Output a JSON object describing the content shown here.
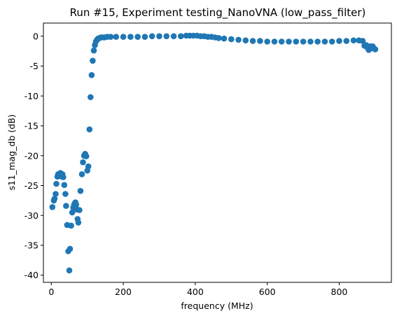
{
  "chart_data": {
    "type": "scatter",
    "title": "Run #15, Experiment testing_NanoVNA (low_pass_filter)",
    "xlabel": "frequency (MHz)",
    "ylabel": "s11_mag_db (dB)",
    "xlim": [
      -22,
      945
    ],
    "ylim": [
      -41.2,
      2.2
    ],
    "xticks": [
      0,
      200,
      400,
      600,
      800
    ],
    "xtick_labels": [
      "0",
      "200",
      "400",
      "600",
      "800"
    ],
    "yticks": [
      0,
      -5,
      -10,
      -15,
      -20,
      -25,
      -30,
      -35,
      -40
    ],
    "ytick_labels": [
      "0",
      "-5",
      "-10",
      "-15",
      "-20",
      "-25",
      "-30",
      "-35",
      "-40"
    ],
    "grid": false,
    "marker_color": "#1f77b4",
    "points": [
      [
        3,
        -28.6
      ],
      [
        7,
        -27.5
      ],
      [
        9,
        -27.2
      ],
      [
        12,
        -26.4
      ],
      [
        14,
        -24.7
      ],
      [
        17,
        -23.5
      ],
      [
        19,
        -23.1
      ],
      [
        21,
        -23.2
      ],
      [
        23,
        -23.4
      ],
      [
        25,
        -22.9
      ],
      [
        27,
        -23.2
      ],
      [
        29,
        -23.5
      ],
      [
        31,
        -23.1
      ],
      [
        33,
        -23.6
      ],
      [
        36,
        -24.9
      ],
      [
        39,
        -26.4
      ],
      [
        41,
        -28.4
      ],
      [
        44,
        -31.6
      ],
      [
        47,
        -36.0
      ],
      [
        50,
        -39.2
      ],
      [
        52,
        -35.6
      ],
      [
        55,
        -31.7
      ],
      [
        58,
        -29.5
      ],
      [
        61,
        -28.7
      ],
      [
        63,
        -28.3
      ],
      [
        65,
        -28.0
      ],
      [
        67,
        -27.8
      ],
      [
        69,
        -28.2
      ],
      [
        71,
        -29.0
      ],
      [
        73,
        -30.6
      ],
      [
        75,
        -31.2
      ],
      [
        78,
        -29.1
      ],
      [
        81,
        -25.9
      ],
      [
        85,
        -23.1
      ],
      [
        88,
        -21.1
      ],
      [
        91,
        -20.0
      ],
      [
        94,
        -19.7
      ],
      [
        97,
        -20.1
      ],
      [
        100,
        -22.5
      ],
      [
        103,
        -21.8
      ],
      [
        106,
        -15.6
      ],
      [
        109,
        -10.2
      ],
      [
        112,
        -6.5
      ],
      [
        115,
        -4.1
      ],
      [
        118,
        -2.4
      ],
      [
        121,
        -1.5
      ],
      [
        124,
        -0.9
      ],
      [
        127,
        -0.6
      ],
      [
        130,
        -0.4
      ],
      [
        134,
        -0.3
      ],
      [
        138,
        -0.2
      ],
      [
        143,
        -0.2
      ],
      [
        148,
        -0.2
      ],
      [
        155,
        -0.1
      ],
      [
        165,
        -0.1
      ],
      [
        180,
        -0.1
      ],
      [
        200,
        -0.1
      ],
      [
        220,
        -0.1
      ],
      [
        240,
        -0.1
      ],
      [
        260,
        -0.1
      ],
      [
        280,
        0.0
      ],
      [
        300,
        0.0
      ],
      [
        320,
        0.0
      ],
      [
        340,
        0.0
      ],
      [
        360,
        0.0
      ],
      [
        375,
        0.1
      ],
      [
        385,
        0.1
      ],
      [
        395,
        0.1
      ],
      [
        405,
        0.1
      ],
      [
        415,
        0.0
      ],
      [
        425,
        0.0
      ],
      [
        435,
        -0.1
      ],
      [
        445,
        -0.1
      ],
      [
        455,
        -0.2
      ],
      [
        465,
        -0.3
      ],
      [
        480,
        -0.4
      ],
      [
        500,
        -0.5
      ],
      [
        520,
        -0.6
      ],
      [
        540,
        -0.7
      ],
      [
        560,
        -0.8
      ],
      [
        580,
        -0.8
      ],
      [
        600,
        -0.9
      ],
      [
        620,
        -0.9
      ],
      [
        640,
        -0.9
      ],
      [
        660,
        -0.9
      ],
      [
        680,
        -0.9
      ],
      [
        700,
        -0.9
      ],
      [
        720,
        -0.9
      ],
      [
        740,
        -0.9
      ],
      [
        760,
        -0.9
      ],
      [
        780,
        -0.9
      ],
      [
        800,
        -0.8
      ],
      [
        820,
        -0.8
      ],
      [
        840,
        -0.7
      ],
      [
        855,
        -0.7
      ],
      [
        865,
        -0.8
      ],
      [
        870,
        -1.6
      ],
      [
        875,
        -1.5
      ],
      [
        878,
        -1.9
      ],
      [
        882,
        -2.3
      ],
      [
        886,
        -1.7
      ],
      [
        890,
        -2.0
      ],
      [
        893,
        -1.7
      ],
      [
        896,
        -2.0
      ],
      [
        900,
        -2.2
      ]
    ]
  }
}
